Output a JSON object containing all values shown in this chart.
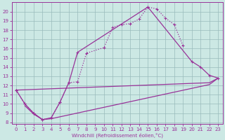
{
  "xlabel": "Windchill (Refroidissement éolien,°C)",
  "background_color": "#cce8e4",
  "line_color": "#993399",
  "grid_color": "#99bbbb",
  "ylim_min": 8,
  "ylim_max": 21,
  "xlim_min": -0.5,
  "xlim_max": 23.5,
  "yticks": [
    8,
    9,
    10,
    11,
    12,
    13,
    14,
    15,
    16,
    17,
    18,
    19,
    20
  ],
  "xticks": [
    0,
    1,
    2,
    3,
    4,
    5,
    6,
    7,
    8,
    9,
    10,
    11,
    12,
    13,
    14,
    15,
    16,
    17,
    18,
    19,
    20,
    21,
    22,
    23
  ],
  "curve1_x": [
    0,
    1,
    2,
    3,
    4,
    5,
    6,
    7,
    8,
    10,
    11,
    12,
    13,
    14,
    15,
    16,
    17,
    18,
    19
  ],
  "curve1_y": [
    11.5,
    10.0,
    9.0,
    8.3,
    8.5,
    10.2,
    12.3,
    12.4,
    15.5,
    16.1,
    18.3,
    18.6,
    18.7,
    19.2,
    20.5,
    20.3,
    19.3,
    18.6,
    16.3
  ],
  "curve1_style": "dotted",
  "curve2_x": [
    0,
    1,
    2,
    3,
    4,
    5,
    6,
    7,
    15,
    20,
    21,
    22,
    23
  ],
  "curve2_y": [
    11.5,
    10.0,
    9.0,
    8.3,
    8.5,
    10.2,
    12.3,
    15.6,
    20.5,
    14.6,
    14.0,
    13.1,
    12.8
  ],
  "curve2_style": "solid",
  "curve3_x": [
    0,
    22,
    23
  ],
  "curve3_y": [
    11.5,
    12.3,
    12.8
  ],
  "curve3_style": "solid",
  "curve4_x": [
    1,
    2,
    3,
    4,
    22,
    23
  ],
  "curve4_y": [
    9.8,
    8.9,
    8.3,
    8.4,
    12.1,
    12.8
  ],
  "curve4_style": "solid"
}
